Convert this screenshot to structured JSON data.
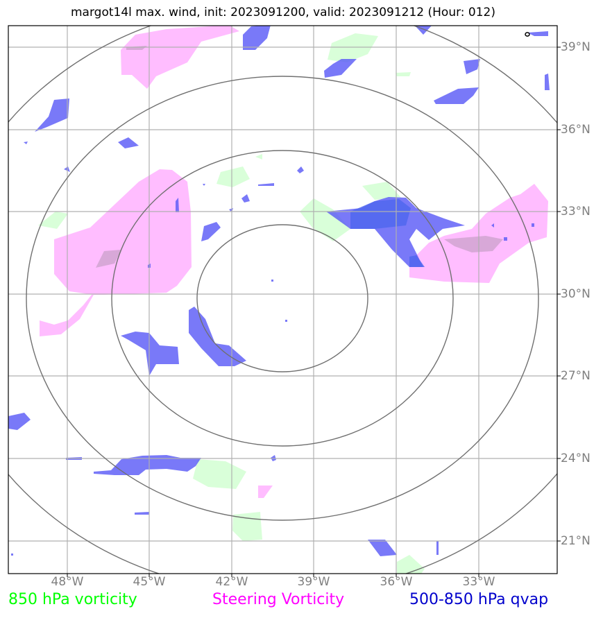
{
  "title": "margot14l max. wind, init: 2023091200, valid: 2023091212 (Hour: 012)",
  "map": {
    "lon_ticks": [
      "48°W",
      "45°W",
      "42°W",
      "39°W",
      "36°W",
      "33°W"
    ],
    "lat_ticks": [
      "39°N",
      "36°N",
      "33°N",
      "30°N",
      "27°N",
      "24°N",
      "21°N"
    ]
  },
  "legend": [
    {
      "label": "850 hPa vorticity",
      "color": "#00ff00"
    },
    {
      "label": "Steering Vorticity",
      "color": "#ff00ff"
    },
    {
      "label": "500-850 hPa qvap",
      "color": "#0000cc"
    }
  ],
  "colors": {
    "vort850_fill": "#ccffcc",
    "steering_fill": "#ffaaff",
    "qvap_fill": "#6666ff",
    "range_rings": "#707070",
    "gridlines": "#b0b0b0"
  }
}
